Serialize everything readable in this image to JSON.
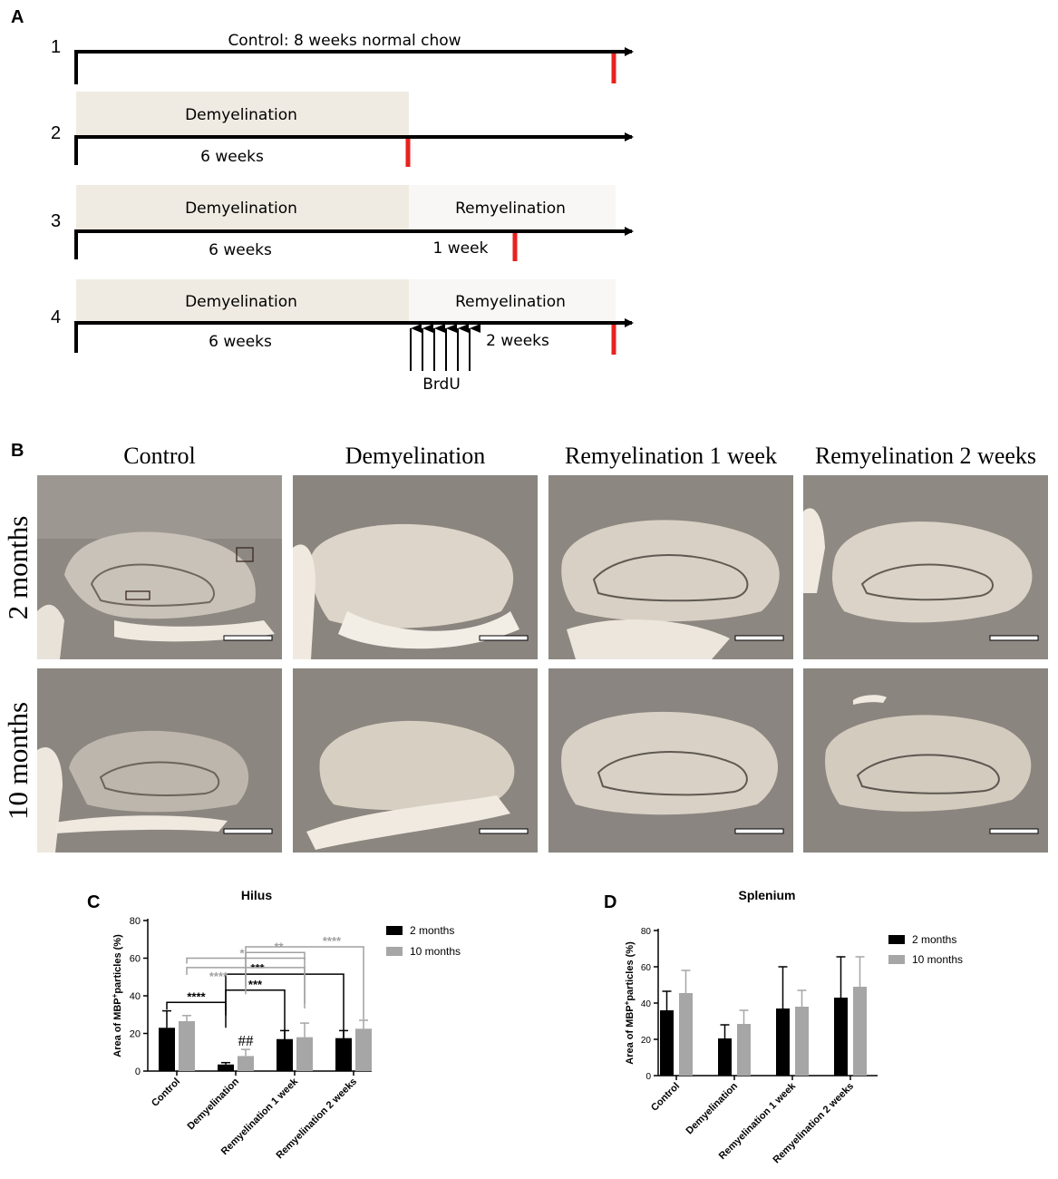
{
  "panel_labels": {
    "a": "A",
    "b": "B",
    "c": "C",
    "d": "D"
  },
  "timeline": {
    "rows": [
      {
        "number": "1",
        "title": "Control: 8 weeks normal chow"
      },
      {
        "number": "2",
        "phase1": "Demyelination",
        "duration1": "6 weeks"
      },
      {
        "number": "3",
        "phase1": "Demyelination",
        "duration1": "6 weeks",
        "phase2": "Remyelination",
        "duration2": "1 week"
      },
      {
        "number": "4",
        "phase1": "Demyelination",
        "duration1": "6 weeks",
        "phase2": "Remyelination",
        "duration2": "2 weeks",
        "injection_label": "BrdU"
      }
    ],
    "colors": {
      "demyelination_box": "#f0ebe2",
      "remyelination_box": "#f8f7f5",
      "sampling_tick": "#e8221f"
    }
  },
  "micrographs": {
    "columns": [
      "Control",
      "Demyelination",
      "Remyelination 1 week",
      "Remyelination 2 weeks"
    ],
    "rows": [
      "2 months",
      "10 months"
    ]
  },
  "chart_data": [
    {
      "type": "bar",
      "title": "Hilus",
      "ylabel_prefix": "Area of  MBP",
      "ylabel_sup": "+",
      "ylabel_suffix": "particles (%)",
      "ylim": [
        0,
        80
      ],
      "yticks": [
        "0",
        "20",
        "40",
        "60",
        "80"
      ],
      "categories": [
        "Control",
        "Demyelination",
        "Remyelination 1 week",
        "Remyelination 2 weeks"
      ],
      "series": [
        {
          "name": "2 months",
          "color": "#000000",
          "values": [
            23,
            3.5,
            17,
            17.5
          ],
          "errors": [
            9,
            1,
            4.5,
            4
          ]
        },
        {
          "name": "10 months",
          "color": "#a6a6a6",
          "values": [
            26.5,
            8,
            18,
            22.5
          ],
          "errors": [
            3,
            3.5,
            7.5,
            4.5
          ]
        }
      ],
      "annotations": {
        "hash_mark": "##",
        "sig_black": [
          "****",
          "***",
          "***"
        ],
        "sig_gray": [
          "****",
          "*",
          "**",
          "****"
        ]
      },
      "legend_position": "top-right"
    },
    {
      "type": "bar",
      "title": "Splenium",
      "ylabel_prefix": "Area of  MBP",
      "ylabel_sup": "+",
      "ylabel_suffix": "particles (%)",
      "ylim": [
        0,
        80
      ],
      "yticks": [
        "0",
        "20",
        "40",
        "60",
        "80"
      ],
      "categories": [
        "Control",
        "Demyelination",
        "Remyelination 1 week",
        "Remyelination 2 weeks"
      ],
      "series": [
        {
          "name": "2 months",
          "color": "#000000",
          "values": [
            36,
            20.5,
            37,
            43
          ],
          "errors": [
            10.5,
            7.5,
            23,
            22.5
          ]
        },
        {
          "name": "10 months",
          "color": "#a6a6a6",
          "values": [
            45.5,
            28.5,
            38,
            49
          ],
          "errors": [
            12.5,
            7.5,
            9,
            16.5
          ]
        }
      ],
      "legend_position": "top-right"
    }
  ]
}
